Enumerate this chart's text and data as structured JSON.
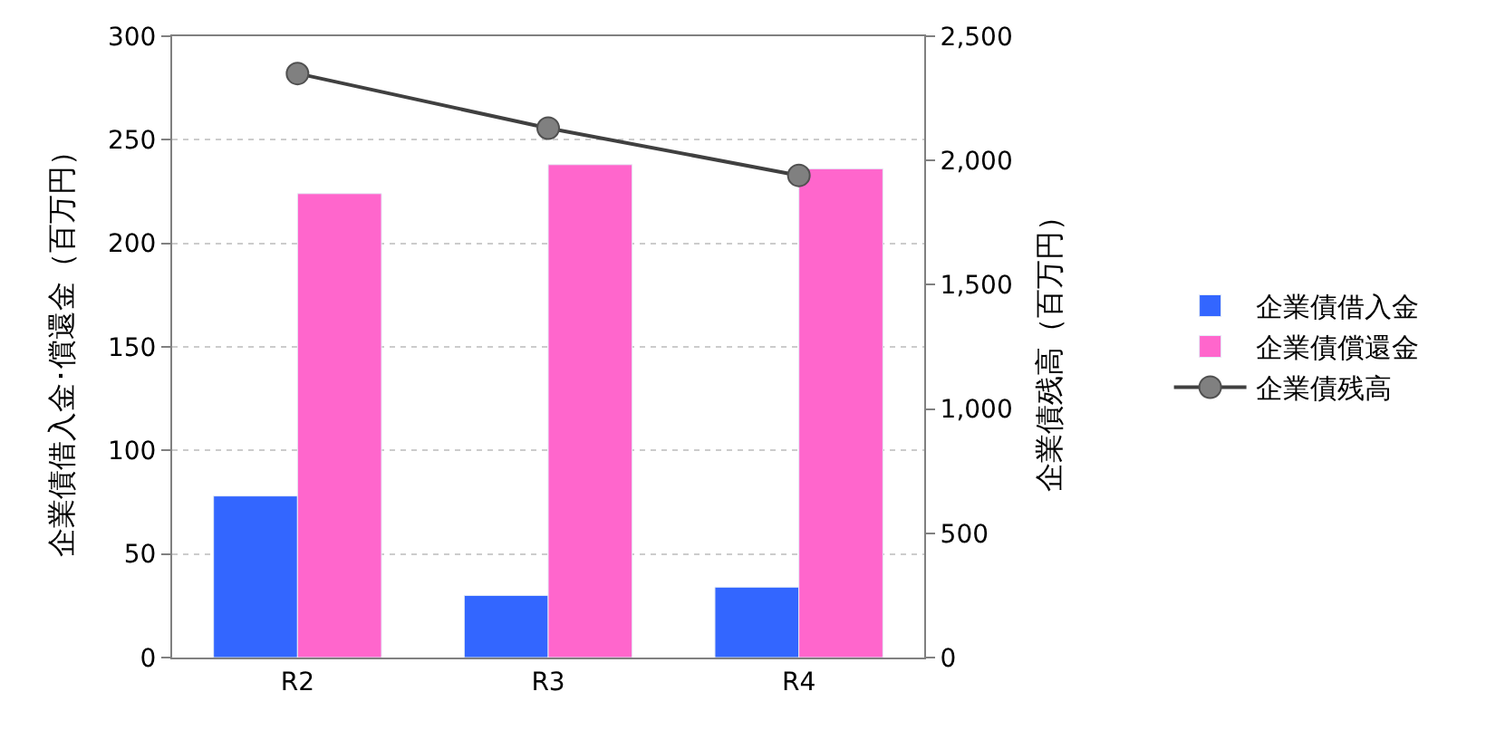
{
  "chart_data": {
    "type": "bar",
    "categories": [
      "R2",
      "R3",
      "R4"
    ],
    "series": [
      {
        "name": "企業債借入金",
        "color": "#3366ff",
        "values": [
          78,
          30,
          34
        ]
      },
      {
        "name": "企業債償還金",
        "color": "#ff66cc",
        "values": [
          224,
          238,
          236
        ]
      },
      {
        "name": "企業債残高",
        "type": "line",
        "axis": "y2",
        "color": "#404040",
        "marker": "circle",
        "values": [
          2350,
          2130,
          1940
        ]
      }
    ],
    "ylabel": "企業債借入金･償還金（百万円）",
    "y2label": "企業債残高（百万円）",
    "ylim": [
      0,
      300
    ],
    "yticks": [
      0,
      50,
      100,
      150,
      200,
      250,
      300
    ],
    "y2lim": [
      0,
      2500
    ],
    "y2ticks": [
      0,
      {
        "value": 500,
        "label": "500"
      },
      {
        "value": 1000,
        "label": "1,000"
      },
      {
        "value": 1500,
        "label": "1,500"
      },
      {
        "value": 2000,
        "label": "2,000"
      },
      {
        "value": 2500,
        "label": "2,500"
      }
    ],
    "grid": "y",
    "legend": "right"
  }
}
